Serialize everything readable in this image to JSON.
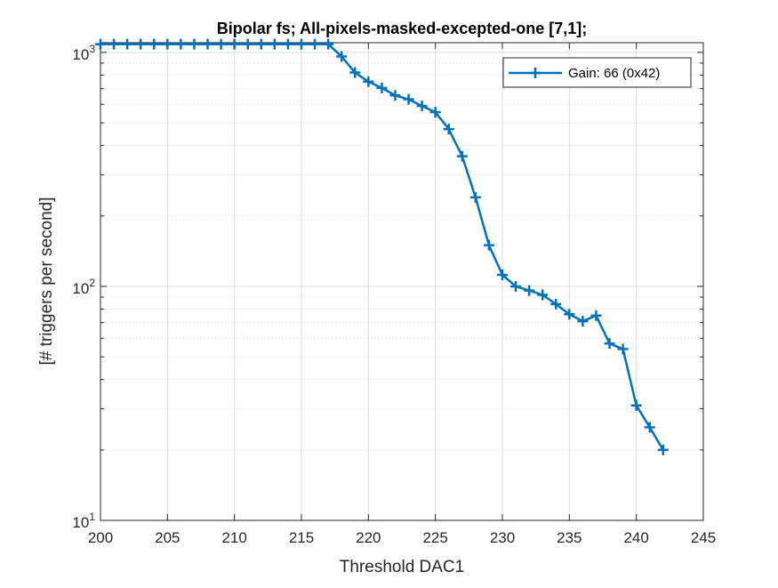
{
  "chart_data": {
    "type": "line",
    "title": "Bipolar fs; All-pixels-masked-excepted-one [7,1];",
    "xlabel": "Threshold DAC1",
    "ylabel": "[# triggers per second]",
    "xlim": [
      200,
      245
    ],
    "ylim": [
      10,
      1100
    ],
    "yscale": "log",
    "grid": true,
    "minor_grid": true,
    "legend_position": "top-right",
    "x_ticks": [
      200,
      205,
      210,
      215,
      220,
      225,
      230,
      235,
      240,
      245
    ],
    "y_ticks": [
      {
        "base": "10",
        "exp": "1",
        "value": 10
      },
      {
        "base": "10",
        "exp": "2",
        "value": 100
      },
      {
        "base": "10",
        "exp": "3",
        "value": 1000
      }
    ],
    "series": [
      {
        "name": "Gain: 66 (0x42)",
        "color": "#0072bd",
        "marker": "plus",
        "x": [
          200,
          201,
          202,
          203,
          204,
          205,
          206,
          207,
          208,
          209,
          210,
          211,
          212,
          213,
          214,
          215,
          216,
          217,
          218,
          219,
          220,
          221,
          222,
          223,
          224,
          225,
          226,
          227,
          228,
          229,
          230,
          231,
          232,
          233,
          234,
          235,
          236,
          237,
          238,
          239,
          240,
          241,
          242
        ],
        "y": [
          1085,
          1085,
          1085,
          1085,
          1085,
          1085,
          1085,
          1085,
          1085,
          1085,
          1085,
          1085,
          1085,
          1085,
          1085,
          1085,
          1085,
          1085,
          960,
          820,
          750,
          705,
          655,
          630,
          590,
          555,
          470,
          360,
          240,
          150,
          112,
          100,
          96,
          92,
          84,
          76,
          71,
          75,
          57,
          54,
          31,
          25,
          20
        ]
      }
    ]
  }
}
